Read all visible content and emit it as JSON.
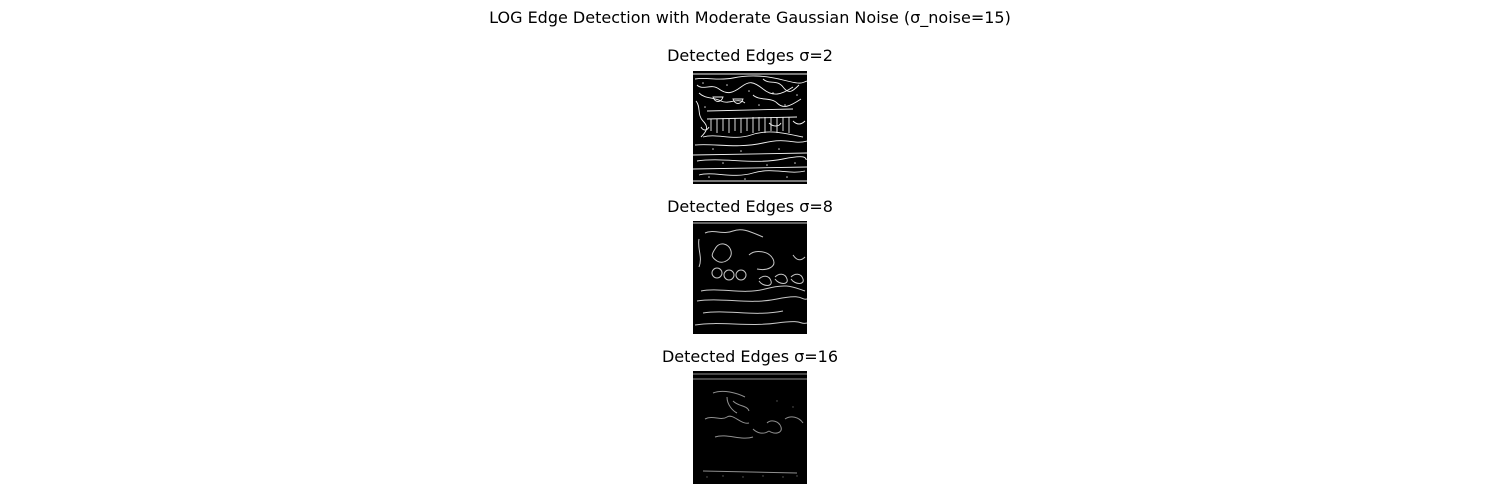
{
  "figure": {
    "suptitle": "LOG Edge Detection with Moderate Gaussian Noise (σ_noise=15)"
  },
  "panels": [
    {
      "title": "Detected Edges σ=2"
    },
    {
      "title": "Detected Edges σ=8"
    },
    {
      "title": "Detected Edges σ=16"
    }
  ],
  "colors": {
    "background": "#ffffff",
    "image_background": "#000000",
    "edge": "#ffffff"
  }
}
